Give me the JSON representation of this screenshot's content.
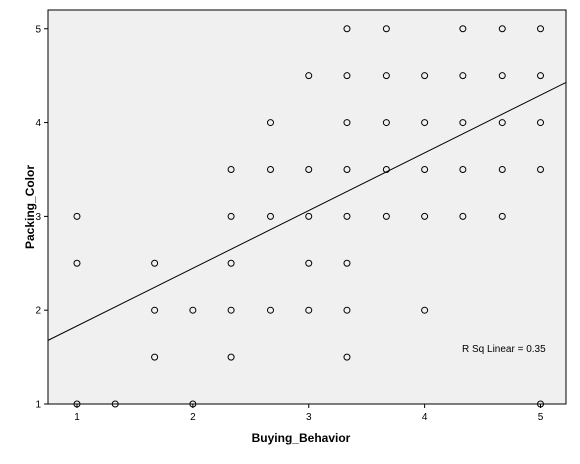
{
  "chart_data": {
    "type": "scatter",
    "title": "",
    "xlabel": "Buying_Behavior",
    "ylabel": "Packing_Color",
    "xlim": [
      0.75,
      5.22
    ],
    "ylim": [
      1,
      5.2
    ],
    "x_ticks": [
      1,
      2,
      3,
      4,
      5
    ],
    "y_ticks": [
      1,
      2,
      3,
      4,
      5
    ],
    "grid": false,
    "colors": {
      "background": "#f0f0f0",
      "marker": "#000000",
      "line": "#000000"
    },
    "points": [
      {
        "x": 1,
        "y": 3
      },
      {
        "x": 1,
        "y": 2.5
      },
      {
        "x": 1,
        "y": 1
      },
      {
        "x": 1.33,
        "y": 1
      },
      {
        "x": 1.67,
        "y": 2.5
      },
      {
        "x": 1.67,
        "y": 2
      },
      {
        "x": 1.67,
        "y": 1.5
      },
      {
        "x": 2,
        "y": 2
      },
      {
        "x": 2,
        "y": 1
      },
      {
        "x": 2.33,
        "y": 3.5
      },
      {
        "x": 2.33,
        "y": 3
      },
      {
        "x": 2.33,
        "y": 2.5
      },
      {
        "x": 2.33,
        "y": 2
      },
      {
        "x": 2.33,
        "y": 1.5
      },
      {
        "x": 2.67,
        "y": 4
      },
      {
        "x": 2.67,
        "y": 3.5
      },
      {
        "x": 2.67,
        "y": 3
      },
      {
        "x": 2.67,
        "y": 2
      },
      {
        "x": 3,
        "y": 4.5
      },
      {
        "x": 3,
        "y": 3.5
      },
      {
        "x": 3,
        "y": 3
      },
      {
        "x": 3,
        "y": 2.5
      },
      {
        "x": 3,
        "y": 2
      },
      {
        "x": 3.33,
        "y": 5
      },
      {
        "x": 3.33,
        "y": 4.5
      },
      {
        "x": 3.33,
        "y": 4
      },
      {
        "x": 3.33,
        "y": 3.5
      },
      {
        "x": 3.33,
        "y": 3
      },
      {
        "x": 3.33,
        "y": 2.5
      },
      {
        "x": 3.33,
        "y": 2
      },
      {
        "x": 3.33,
        "y": 1.5
      },
      {
        "x": 3.67,
        "y": 5
      },
      {
        "x": 3.67,
        "y": 4.5
      },
      {
        "x": 3.67,
        "y": 4
      },
      {
        "x": 3.67,
        "y": 3.5
      },
      {
        "x": 3.67,
        "y": 3
      },
      {
        "x": 4,
        "y": 4.5
      },
      {
        "x": 4,
        "y": 4
      },
      {
        "x": 4,
        "y": 3.5
      },
      {
        "x": 4,
        "y": 3
      },
      {
        "x": 4,
        "y": 2
      },
      {
        "x": 4.33,
        "y": 5
      },
      {
        "x": 4.33,
        "y": 4.5
      },
      {
        "x": 4.33,
        "y": 4
      },
      {
        "x": 4.33,
        "y": 3.5
      },
      {
        "x": 4.33,
        "y": 3
      },
      {
        "x": 4.67,
        "y": 5
      },
      {
        "x": 4.67,
        "y": 4.5
      },
      {
        "x": 4.67,
        "y": 4
      },
      {
        "x": 4.67,
        "y": 3.5
      },
      {
        "x": 4.67,
        "y": 3
      },
      {
        "x": 5,
        "y": 5
      },
      {
        "x": 5,
        "y": 4.5
      },
      {
        "x": 5,
        "y": 4
      },
      {
        "x": 5,
        "y": 3.5
      },
      {
        "x": 5,
        "y": 1
      }
    ],
    "fit_line": {
      "label": "R Sq Linear = 0.35",
      "intercept": 1.217,
      "slope": 0.615
    }
  }
}
